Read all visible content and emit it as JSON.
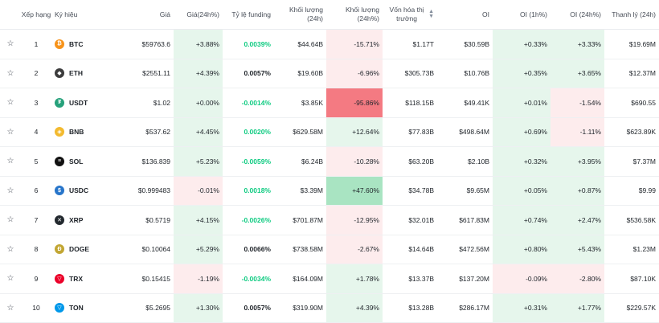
{
  "headers": {
    "rank": "Xếp hạng",
    "symbol": "Ký hiệu",
    "price": "Giá",
    "price_change": "Giá(24h%)",
    "funding": "Tỷ lệ funding",
    "volume": "Khối lượng (24h)",
    "volume_change": "Khối lượng (24h%)",
    "market_cap": "Vốn hóa thị trường",
    "oi": "OI",
    "oi_1h": "OI (1h%)",
    "oi_24h": "OI (24h%)",
    "liquidation": "Thanh lý (24h)"
  },
  "colors": {
    "positive": "#0ecb81",
    "negative": "#f6465d",
    "pos_bg": "#e6f6ec",
    "neg_bg": "#fdeced",
    "neg_strong_bg": "#f47a82",
    "pos_strong_bg": "#a9e4c2"
  },
  "rows": [
    {
      "rank": "1",
      "symbol": "BTC",
      "icon": "bitcoin-icon",
      "icon_color": "#f7931a",
      "glyph": "₿",
      "price": "$59763.6",
      "price_change": "+3.88%",
      "funding": "0.0039%",
      "funding_dir": "pos",
      "volume": "$44.64B",
      "volume_change": "-15.71%",
      "vol_bg": "neg",
      "market_cap": "$1.17T",
      "oi": "$30.59B",
      "oi_1h": "+0.33%",
      "oi_24h": "+3.33%",
      "liquidation": "$19.69M"
    },
    {
      "rank": "2",
      "symbol": "ETH",
      "icon": "ethereum-icon",
      "icon_color": "#3c3c3d",
      "glyph": "◆",
      "price": "$2551.11",
      "price_change": "+4.39%",
      "funding": "0.0057%",
      "funding_dir": "neutral",
      "volume": "$19.60B",
      "volume_change": "-6.96%",
      "vol_bg": "neg",
      "market_cap": "$305.73B",
      "oi": "$10.76B",
      "oi_1h": "+0.35%",
      "oi_24h": "+3.65%",
      "liquidation": "$12.37M"
    },
    {
      "rank": "3",
      "symbol": "USDT",
      "icon": "tether-icon",
      "icon_color": "#26a17b",
      "glyph": "₮",
      "price": "$1.02",
      "price_change": "+0.00%",
      "funding": "-0.0014%",
      "funding_dir": "pos",
      "volume": "$3.85K",
      "volume_change": "-95.86%",
      "vol_bg": "neg_strong",
      "market_cap": "$118.15B",
      "oi": "$49.41K",
      "oi_1h": "+0.01%",
      "oi_24h": "-1.54%",
      "liquidation": "$690.55"
    },
    {
      "rank": "4",
      "symbol": "BNB",
      "icon": "bnb-icon",
      "icon_color": "#f3ba2f",
      "glyph": "◈",
      "price": "$537.62",
      "price_change": "+4.45%",
      "funding": "0.0020%",
      "funding_dir": "pos",
      "volume": "$629.58M",
      "volume_change": "+12.64%",
      "vol_bg": "pos",
      "market_cap": "$77.83B",
      "oi": "$498.64M",
      "oi_1h": "+0.69%",
      "oi_24h": "-1.11%",
      "liquidation": "$623.89K"
    },
    {
      "rank": "5",
      "symbol": "SOL",
      "icon": "solana-icon",
      "icon_color": "#111111",
      "glyph": "≡",
      "price": "$136.839",
      "price_change": "+5.23%",
      "funding": "-0.0059%",
      "funding_dir": "pos",
      "volume": "$6.24B",
      "volume_change": "-10.28%",
      "vol_bg": "neg",
      "market_cap": "$63.20B",
      "oi": "$2.10B",
      "oi_1h": "+0.32%",
      "oi_24h": "+3.95%",
      "liquidation": "$7.37M"
    },
    {
      "rank": "6",
      "symbol": "USDC",
      "icon": "usdc-icon",
      "icon_color": "#2775ca",
      "glyph": "$",
      "price": "$0.999483",
      "price_change": "-0.01%",
      "funding": "0.0018%",
      "funding_dir": "pos",
      "volume": "$3.39M",
      "volume_change": "+47.60%",
      "vol_bg": "pos_strong",
      "market_cap": "$34.78B",
      "oi": "$9.65M",
      "oi_1h": "+0.05%",
      "oi_24h": "+0.87%",
      "liquidation": "$9.99"
    },
    {
      "rank": "7",
      "symbol": "XRP",
      "icon": "xrp-icon",
      "icon_color": "#23292f",
      "glyph": "✕",
      "price": "$0.5719",
      "price_change": "+4.15%",
      "funding": "-0.0026%",
      "funding_dir": "pos",
      "volume": "$701.87M",
      "volume_change": "-12.95%",
      "vol_bg": "neg",
      "market_cap": "$32.01B",
      "oi": "$617.83M",
      "oi_1h": "+0.74%",
      "oi_24h": "+2.47%",
      "liquidation": "$536.58K"
    },
    {
      "rank": "8",
      "symbol": "DOGE",
      "icon": "doge-icon",
      "icon_color": "#c2a633",
      "glyph": "Ð",
      "price": "$0.10064",
      "price_change": "+5.29%",
      "funding": "0.0066%",
      "funding_dir": "neutral",
      "volume": "$738.58M",
      "volume_change": "-2.67%",
      "vol_bg": "neg",
      "market_cap": "$14.64B",
      "oi": "$472.56M",
      "oi_1h": "+0.80%",
      "oi_24h": "+5.43%",
      "liquidation": "$1.23M"
    },
    {
      "rank": "9",
      "symbol": "TRX",
      "icon": "tron-icon",
      "icon_color": "#eb0029",
      "glyph": "▽",
      "price": "$0.15415",
      "price_change": "-1.19%",
      "funding": "-0.0034%",
      "funding_dir": "pos",
      "volume": "$164.09M",
      "volume_change": "+1.78%",
      "vol_bg": "pos",
      "market_cap": "$13.37B",
      "oi": "$137.20M",
      "oi_1h": "-0.09%",
      "oi_24h": "-2.80%",
      "liquidation": "$87.10K"
    },
    {
      "rank": "10",
      "symbol": "TON",
      "icon": "toncoin-icon",
      "icon_color": "#0098ea",
      "glyph": "▽",
      "price": "$5.2695",
      "price_change": "+1.30%",
      "funding": "0.0057%",
      "funding_dir": "neutral",
      "volume": "$319.90M",
      "volume_change": "+4.39%",
      "vol_bg": "pos",
      "market_cap": "$13.28B",
      "oi": "$286.17M",
      "oi_1h": "+0.31%",
      "oi_24h": "+1.77%",
      "liquidation": "$229.57K"
    }
  ]
}
